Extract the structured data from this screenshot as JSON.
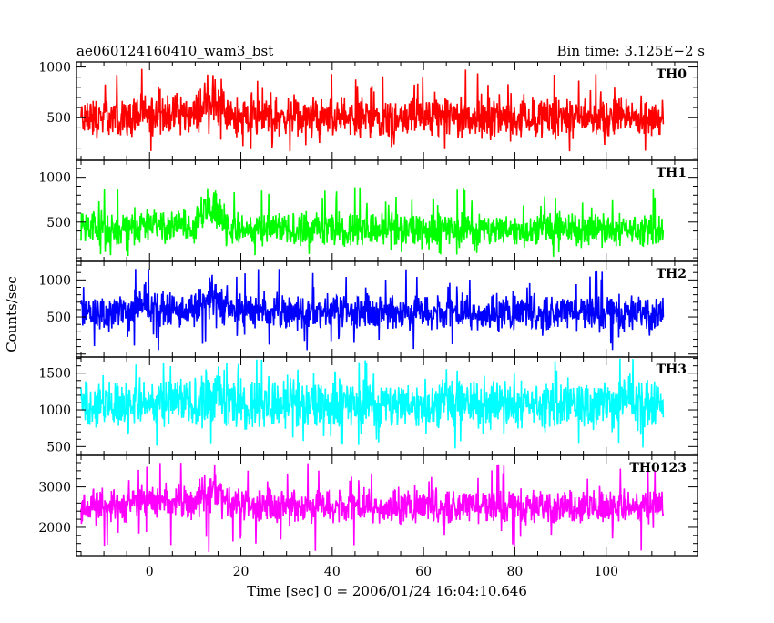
{
  "header": {
    "left_title": "ae060124160410_wam3_bst",
    "right_title": "Bin time: 3.125E−2 s"
  },
  "chart_data": {
    "type": "line",
    "title": "ae060124160410_wam3_bst",
    "subtitle": "Bin time: 3.125E−2 s",
    "xlabel": "Time [sec] 0 = 2006/01/24 16:04:10.646",
    "ylabel": "Counts/sec",
    "xlim": [
      -16,
      120
    ],
    "x_ticks": [
      0,
      20,
      40,
      60,
      80,
      100
    ],
    "x_tick_labels": [
      "0",
      "20",
      "40",
      "60",
      "80",
      "100"
    ],
    "x_data_range": [
      -15.0,
      112.5
    ],
    "grid": false,
    "legend": "none",
    "burst_window": [
      9.5,
      17.5
    ],
    "panels": [
      {
        "name": "TH0",
        "color": "#ff0000",
        "ylim": [
          80,
          1050
        ],
        "yticks": [
          500,
          1000
        ],
        "ytick_labels": [
          "500",
          "1000"
        ],
        "baseline": 500,
        "noise_amplitude": 140,
        "spike_max": 1000,
        "dip_min": 160,
        "burst_peak": 800
      },
      {
        "name": "TH1",
        "color": "#00ff00",
        "ylim": [
          60,
          1190
        ],
        "yticks": [
          500,
          1000
        ],
        "ytick_labels": [
          "500",
          "1000"
        ],
        "baseline": 420,
        "noise_amplitude": 130,
        "spike_max": 900,
        "dip_min": 110,
        "burst_peak": 870
      },
      {
        "name": "TH2",
        "color": "#0000ff",
        "ylim": [
          -40,
          1250
        ],
        "yticks": [
          500,
          1000
        ],
        "ytick_labels": [
          "500",
          "1000"
        ],
        "baseline": 560,
        "noise_amplitude": 170,
        "spike_max": 1150,
        "dip_min": 40,
        "burst_peak": 920
      },
      {
        "name": "TH3",
        "color": "#00ffff",
        "ylim": [
          380,
          1720
        ],
        "yticks": [
          500,
          1000,
          1500
        ],
        "ytick_labels": [
          "500",
          "1000",
          "1500"
        ],
        "baseline": 1080,
        "noise_amplitude": 230,
        "spike_max": 1700,
        "dip_min": 470,
        "burst_peak": 1300
      },
      {
        "name": "TH0123",
        "color": "#ff00ff",
        "ylim": [
          1300,
          3780
        ],
        "yticks": [
          2000,
          3000
        ],
        "ytick_labels": [
          "2000",
          "3000"
        ],
        "baseline": 2520,
        "noise_amplitude": 300,
        "spike_max": 3600,
        "dip_min": 1350,
        "burst_peak": 3300
      }
    ]
  }
}
